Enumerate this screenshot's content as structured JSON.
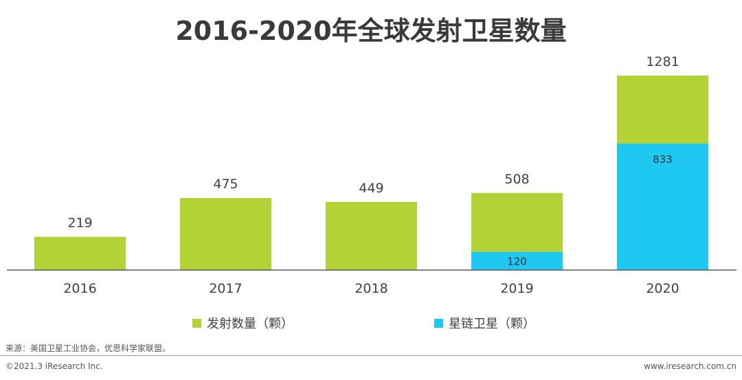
{
  "title": "2016-2020年全球发射卫星数量",
  "colors": {
    "launches": "#b2d235",
    "starlink": "#1ec8f0",
    "axis": "#595959"
  },
  "chart_data": {
    "type": "bar",
    "stacked": true,
    "categories": [
      "2016",
      "2017",
      "2018",
      "2019",
      "2020"
    ],
    "series": [
      {
        "name": "星链卫星（颗）",
        "values": [
          0,
          0,
          0,
          120,
          833
        ]
      },
      {
        "name": "发射数量（颗）",
        "values": [
          219,
          475,
          449,
          388,
          448
        ]
      }
    ],
    "totals": [
      219,
      475,
      449,
      508,
      1281
    ],
    "starlink_labels": [
      "",
      "",
      "",
      "120",
      "833"
    ],
    "legend_position": "bottom",
    "grid": false
  },
  "legend": {
    "launches_label": "发射数量（颗）",
    "starlink_label": "星链卫星（颗）"
  },
  "footer": {
    "source": "来源：美国卫星工业协会，优思科学家联盟。",
    "copyright": "©2021.3 iResearch Inc.",
    "website": "www.iresearch.com.cn"
  }
}
